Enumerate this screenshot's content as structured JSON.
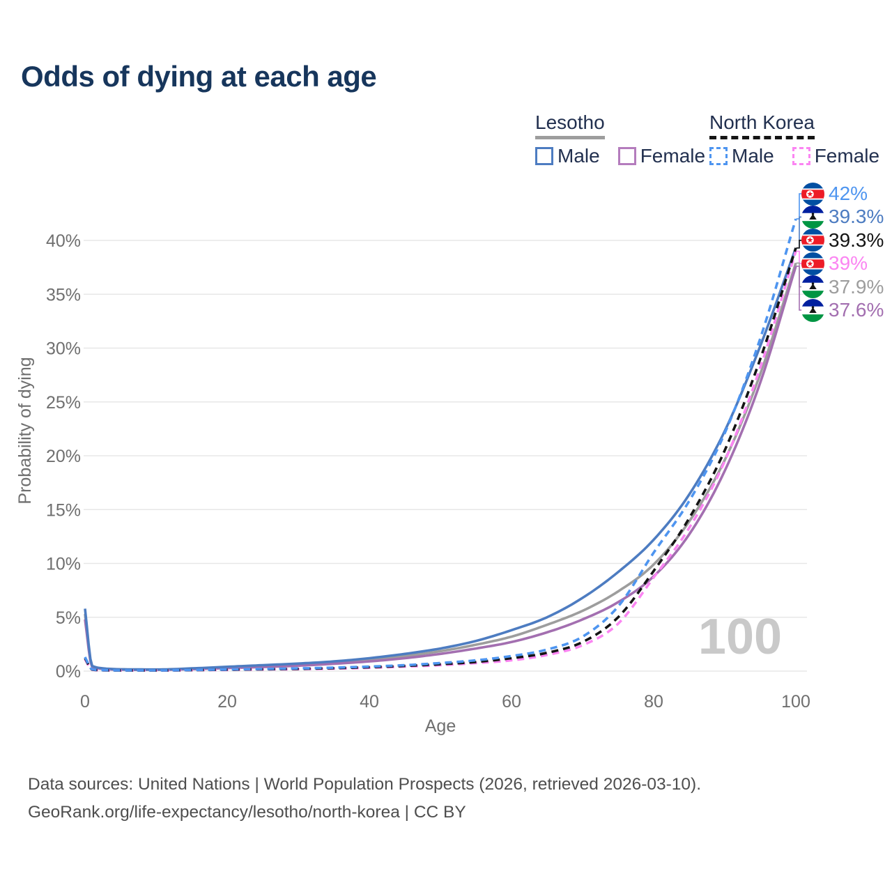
{
  "title": "Odds of dying at each age",
  "legend": {
    "groups": [
      {
        "label": "Lesotho",
        "line_style": "solid",
        "line_color": "#9d9d9d",
        "items": [
          {
            "label": "Male",
            "color": "#4d7cc1",
            "dashed": false
          },
          {
            "label": "Female",
            "color": "#b47cbd",
            "dashed": false
          }
        ]
      },
      {
        "label": "North Korea",
        "line_style": "dashed",
        "line_color": "#141414",
        "items": [
          {
            "label": "Male",
            "color": "#4e95f0",
            "dashed": true
          },
          {
            "label": "Female",
            "color": "#fb85f2",
            "dashed": true
          }
        ]
      }
    ]
  },
  "chart_data": {
    "type": "line",
    "title": "Odds of dying at each age",
    "xlabel": "Age",
    "ylabel": "Probability of dying",
    "x_ticks": [
      0,
      20,
      40,
      60,
      80,
      100
    ],
    "y_tick_labels": [
      "0%",
      "5%",
      "10%",
      "15%",
      "20%",
      "25%",
      "30%",
      "35%",
      "40%"
    ],
    "y_tick_values": [
      0,
      5,
      10,
      15,
      20,
      25,
      30,
      35,
      40
    ],
    "xlim": [
      0,
      100
    ],
    "ylim_pct": [
      0,
      44
    ],
    "grid": "horizontal",
    "grid_color": "#e7e7e7",
    "axis_text_color": "#6f6f6f",
    "watermark": "100",
    "watermark_color": "#c9c9c9",
    "ages": [
      0,
      1,
      2,
      5,
      10,
      15,
      20,
      25,
      30,
      35,
      40,
      45,
      50,
      55,
      60,
      65,
      70,
      75,
      80,
      85,
      90,
      95,
      100
    ],
    "series": [
      {
        "id": "lesotho-total",
        "name": "Lesotho",
        "country": "Lesotho",
        "sex": "all",
        "color": "#9d9d9d",
        "dashed": false,
        "values": [
          5.3,
          0.45,
          0.27,
          0.15,
          0.13,
          0.21,
          0.34,
          0.47,
          0.6,
          0.8,
          1.05,
          1.4,
          1.85,
          2.45,
          3.2,
          4.3,
          5.6,
          7.4,
          9.9,
          13.9,
          19.6,
          27.6,
          37.9
        ]
      },
      {
        "id": "lesotho-female",
        "name": "Lesotho Female",
        "country": "Lesotho",
        "sex": "female",
        "color": "#a36fb0",
        "dashed": false,
        "values": [
          4.8,
          0.4,
          0.24,
          0.13,
          0.12,
          0.18,
          0.28,
          0.38,
          0.5,
          0.68,
          0.9,
          1.2,
          1.6,
          2.1,
          2.7,
          3.6,
          4.8,
          6.4,
          8.8,
          12.7,
          18.6,
          26.8,
          37.6
        ]
      },
      {
        "id": "lesotho-male",
        "name": "Lesotho Male",
        "country": "Lesotho",
        "sex": "male",
        "color": "#4d7cc1",
        "dashed": false,
        "values": [
          5.8,
          0.5,
          0.3,
          0.17,
          0.15,
          0.25,
          0.4,
          0.55,
          0.7,
          0.9,
          1.2,
          1.6,
          2.1,
          2.8,
          3.8,
          5.0,
          6.8,
          9.2,
          12.2,
          16.4,
          22.3,
          30.2,
          39.3
        ]
      },
      {
        "id": "north-korea-female",
        "name": "North Korea Female",
        "country": "North Korea",
        "sex": "female",
        "color": "#fb85f2",
        "dashed": true,
        "values": [
          1.1,
          0.12,
          0.08,
          0.05,
          0.05,
          0.08,
          0.11,
          0.15,
          0.18,
          0.23,
          0.31,
          0.42,
          0.55,
          0.75,
          1.0,
          1.5,
          2.4,
          4.4,
          8.7,
          13.3,
          19.5,
          28.2,
          39.0
        ]
      },
      {
        "id": "north-korea-total",
        "name": "North Korea",
        "country": "North Korea",
        "sex": "all",
        "color": "#141414",
        "dashed": true,
        "values": [
          1.2,
          0.14,
          0.09,
          0.06,
          0.06,
          0.09,
          0.13,
          0.17,
          0.21,
          0.27,
          0.36,
          0.48,
          0.64,
          0.85,
          1.2,
          1.7,
          2.7,
          5.0,
          9.3,
          14.2,
          20.5,
          29.0,
          39.3
        ]
      },
      {
        "id": "north-korea-male",
        "name": "North Korea Male",
        "country": "North Korea",
        "sex": "male",
        "color": "#4e95f0",
        "dashed": true,
        "values": [
          1.3,
          0.16,
          0.1,
          0.07,
          0.07,
          0.1,
          0.15,
          0.2,
          0.25,
          0.32,
          0.42,
          0.55,
          0.75,
          1.0,
          1.4,
          2.0,
          3.2,
          6.0,
          11.0,
          15.8,
          22.1,
          30.9,
          42.0
        ]
      }
    ],
    "end_labels": [
      {
        "flag": "north-korea",
        "flag_icon": "north-korea-flag-icon",
        "text": "42%",
        "color": "#4e95f0",
        "series": "north-korea-male"
      },
      {
        "flag": "lesotho",
        "flag_icon": "lesotho-flag-icon",
        "text": "39.3%",
        "color": "#4d7cc1",
        "series": "lesotho-male"
      },
      {
        "flag": "north-korea",
        "flag_icon": "north-korea-flag-icon",
        "text": "39.3%",
        "color": "#141414",
        "series": "north-korea-total"
      },
      {
        "flag": "north-korea",
        "flag_icon": "north-korea-flag-icon",
        "text": "39%",
        "color": "#fb85f2",
        "series": "north-korea-female"
      },
      {
        "flag": "lesotho",
        "flag_icon": "lesotho-flag-icon",
        "text": "37.9%",
        "color": "#9d9d9d",
        "series": "lesotho-total"
      },
      {
        "flag": "lesotho",
        "flag_icon": "lesotho-flag-icon",
        "text": "37.6%",
        "color": "#a36fb0",
        "series": "lesotho-female"
      }
    ],
    "flag_colors": {
      "north_korea": {
        "blue": "#024FA2",
        "red": "#ED1C27",
        "white": "#ffffff"
      },
      "lesotho": {
        "blue": "#00209F",
        "white": "#ffffff",
        "green": "#009543",
        "hat": "#141414"
      }
    }
  },
  "footer": {
    "line1": "Data sources: United Nations | World Population Prospects (2026, retrieved 2026-03-10).",
    "line2": "GeoRank.org/life-expectancy/lesotho/north-korea | CC BY"
  }
}
